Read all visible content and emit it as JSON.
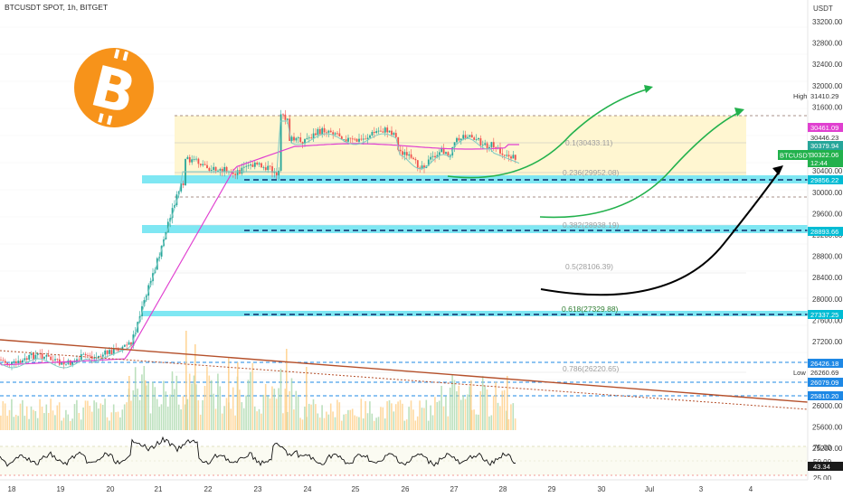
{
  "header": {
    "title": "BTCUSDT SPOT, 1h, BITGET",
    "currency": "USDT"
  },
  "price_axis": {
    "ticks": [
      "33200.00",
      "32800.00",
      "32400.00",
      "32000.00",
      "31600.00",
      "31200.00",
      "30800.00",
      "30400.00",
      "30000.00",
      "29600.00",
      "29200.00",
      "28800.00",
      "28400.00",
      "28000.00",
      "27600.00",
      "27200.00",
      "26800.00",
      "26400.00",
      "26000.00",
      "25600.00",
      "25200.00"
    ],
    "badges": [
      {
        "text": "31410.29",
        "label": "High",
        "color": "#ffffff",
        "text_color": "#333333"
      },
      {
        "text": "30461.09",
        "color": "#e040d0",
        "text_color": "#ffffff"
      },
      {
        "text": "30446.23",
        "color": "#ffffff",
        "text_color": "#333333"
      },
      {
        "text": "30379.94",
        "color": "#26a69a",
        "text_color": "#ffffff"
      },
      {
        "text": "30322.06",
        "color": "#22b14c",
        "text_color": "#ffffff"
      },
      {
        "text": "12:44",
        "color": "#22b14c",
        "text_color": "#ffffff"
      },
      {
        "text": "29856.22",
        "color": "#00bcd4",
        "text_color": "#ffffff"
      },
      {
        "text": "28893.66",
        "color": "#00bcd4",
        "text_color": "#ffffff"
      },
      {
        "text": "27337.25",
        "color": "#00bcd4",
        "text_color": "#ffffff"
      },
      {
        "text": "26426.18",
        "color": "#1e88e5",
        "text_color": "#ffffff"
      },
      {
        "text": "26260.69",
        "label": "Low",
        "color": "#ffffff",
        "text_color": "#333333"
      },
      {
        "text": "26079.09",
        "color": "#1e88e5",
        "text_color": "#ffffff"
      },
      {
        "text": "25810.20",
        "color": "#1e88e5",
        "text_color": "#ffffff"
      }
    ],
    "symbol_label": "BTCUSDT"
  },
  "rsi_axis": {
    "ticks": [
      "75.00",
      "50.00",
      "25.00"
    ],
    "value": "43.34"
  },
  "fib_levels": [
    {
      "text": "0.1(30433.11)",
      "color": "#9e9e9e"
    },
    {
      "text": "0.236(29952.08)",
      "color": "#9e9e9e"
    },
    {
      "text": "0.382(28938.19)",
      "color": "#9e9e9e"
    },
    {
      "text": "0.5(28106.39)",
      "color": "#9e9e9e"
    },
    {
      "text": "0.618(27329.88)",
      "color": "#2e7d32"
    },
    {
      "text": "0.786(26220.65)",
      "color": "#9e9e9e"
    }
  ],
  "time_axis": {
    "labels": [
      "18",
      "19",
      "20",
      "21",
      "22",
      "23",
      "24",
      "25",
      "26",
      "27",
      "28",
      "29",
      "30",
      "Jul",
      "3",
      "4"
    ]
  },
  "colors": {
    "zone_fill": "#fff6d1",
    "support_band": "#7fe7f3",
    "up_candle": "#26a69a",
    "down_candle": "#ef5350",
    "arrow_green": "#22b14c",
    "arrow_black": "#000000",
    "trendline": "#b5502b",
    "ma_magenta": "#e040d0",
    "bitcoin_orange": "#f7931a"
  },
  "icons": {
    "logo": "bitcoin-logo-icon"
  }
}
